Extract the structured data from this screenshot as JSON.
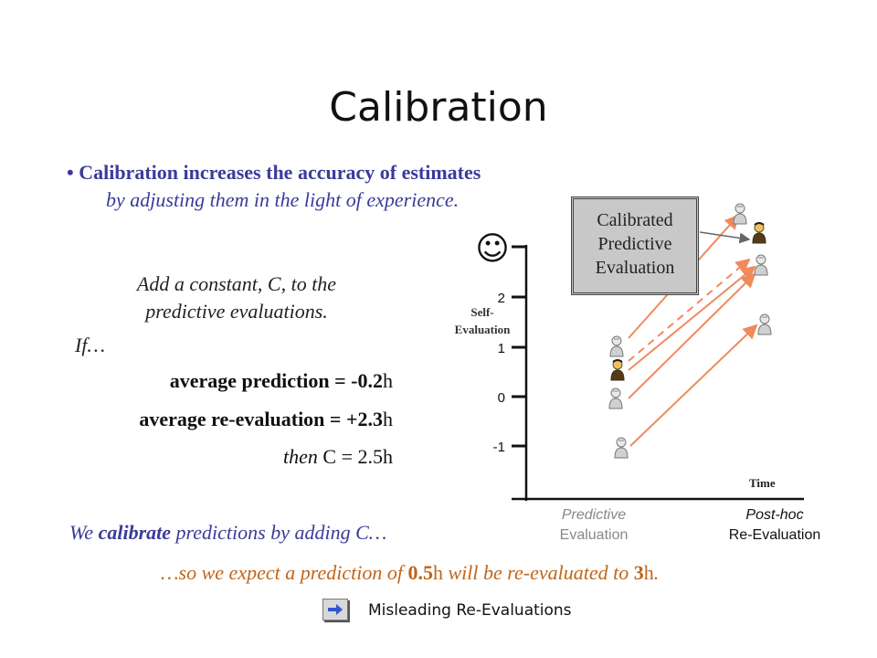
{
  "slide": {
    "title": "Calibration",
    "bullet": {
      "line1": "• Calibration increases the accuracy of estimates",
      "line2": "by adjusting them in the light of experience."
    },
    "instruction": {
      "line1": "Add a constant, C, to the",
      "line2": "predictive evaluations.",
      "if": "If…"
    },
    "equations": {
      "row1_label": "average prediction =",
      "row1_value": "-0.2",
      "row1_unit": "h",
      "row2_label": "average re-evaluation =",
      "row2_value": "+2.3",
      "row2_unit": "h",
      "row3_then": "then",
      "row3_var": "C",
      "row3_eq": "=",
      "row3_value": "2.5",
      "row3_unit": "h"
    },
    "calibrate_line": {
      "pre": "We",
      "bold": "calibrate",
      "post": "predictions by adding C…"
    },
    "expect_line": {
      "pre": "…so we expect a prediction of",
      "v1": "0.5",
      "u1": "h",
      "mid": "will be re-evaluated to",
      "v2": "3",
      "u2": "h",
      "end": "."
    },
    "nav": {
      "label": "Misleading  Re-Evaluations",
      "icon": "arrow-right-icon"
    }
  },
  "diagram": {
    "callout": {
      "line1": "Calibrated",
      "line2": "Predictive",
      "line3": "Evaluation"
    },
    "y_axis": {
      "label_line1": "Self-",
      "label_line2": "Evaluation",
      "ticks": [
        "2",
        "1",
        "0",
        "-1"
      ],
      "top_symbol": "☺"
    },
    "x_axis": {
      "label": "Time",
      "left": {
        "line1": "Predictive",
        "line2": "Evaluation"
      },
      "right": {
        "line1": "Post-hoc",
        "line2": "Re-Evaluation"
      }
    },
    "colors": {
      "text_blue": "#3b3b9a",
      "arrow_orange": "#f08a5d",
      "callout_fill": "#c8c8c8",
      "connector": "#666666"
    }
  }
}
